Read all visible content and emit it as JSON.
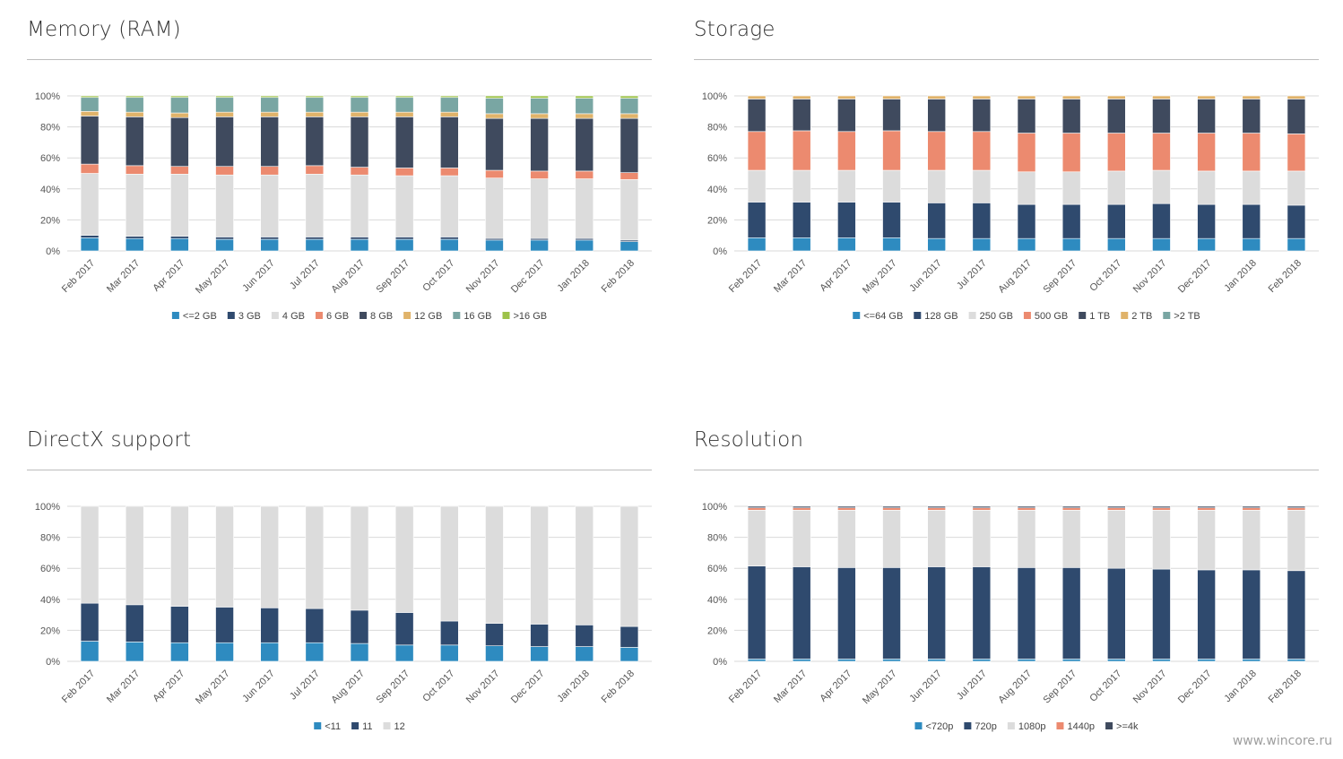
{
  "watermark": "www.wincore.ru",
  "categories": [
    "Feb 2017",
    "Mar 2017",
    "Apr 2017",
    "May 2017",
    "Jun 2017",
    "Jul 2017",
    "Aug 2017",
    "Sep 2017",
    "Oct 2017",
    "Nov 2017",
    "Dec 2017",
    "Jan 2018",
    "Feb 2018"
  ],
  "y_ticks": [
    "0%",
    "20%",
    "40%",
    "60%",
    "80%",
    "100%"
  ],
  "chart_data": [
    {
      "type": "bar",
      "stacked": true,
      "title": "Memory (RAM)",
      "ylim": [
        0,
        100
      ],
      "legend": "bottom",
      "series": [
        {
          "name": "<=2 GB",
          "color": "#2e8bc0",
          "values": [
            8.5,
            8,
            8,
            7.5,
            7.5,
            7.5,
            7.5,
            7.5,
            7.5,
            7,
            7,
            7,
            6
          ]
        },
        {
          "name": "3 GB",
          "color": "#2f4a6e",
          "values": [
            1.5,
            1.5,
            1.5,
            1.5,
            1.5,
            1.5,
            1.5,
            1.5,
            1.5,
            1,
            1,
            1,
            1
          ]
        },
        {
          "name": "4 GB",
          "color": "#dcdcdc",
          "values": [
            40,
            40,
            40,
            40,
            40,
            40.5,
            40,
            39.5,
            39.5,
            39,
            38.5,
            38.5,
            39
          ]
        },
        {
          "name": "6 GB",
          "color": "#ec8a6f",
          "values": [
            6,
            5.5,
            5,
            5.5,
            5.5,
            5.5,
            5,
            5,
            5,
            5,
            5,
            5,
            4.5
          ]
        },
        {
          "name": "8 GB",
          "color": "#3f4a5e",
          "values": [
            31,
            31.5,
            31.5,
            32,
            32,
            31.5,
            32.5,
            33,
            33,
            33.5,
            34,
            34,
            35
          ]
        },
        {
          "name": "12 GB",
          "color": "#e0b36a",
          "values": [
            3,
            3,
            3,
            3,
            3,
            3,
            3,
            3,
            3,
            3,
            3,
            3,
            3
          ]
        },
        {
          "name": "16 GB",
          "color": "#79a6a3",
          "values": [
            9,
            9.5,
            10,
            9.5,
            9.5,
            9.5,
            9.5,
            9.5,
            9.5,
            10,
            10,
            10,
            10
          ]
        },
        {
          "name": ">16 GB",
          "color": "#9dc24a",
          "values": [
            1,
            1,
            1,
            1,
            1,
            1,
            1,
            1,
            1,
            1.5,
            1.5,
            1.5,
            1.5
          ]
        }
      ]
    },
    {
      "type": "bar",
      "stacked": true,
      "title": "Storage",
      "ylim": [
        0,
        100
      ],
      "legend": "bottom",
      "series": [
        {
          "name": "<=64 GB",
          "color": "#2e8bc0",
          "values": [
            8.5,
            8.5,
            8.5,
            8.5,
            8,
            8,
            8,
            8,
            8,
            8,
            8,
            8,
            8
          ]
        },
        {
          "name": "128 GB",
          "color": "#2f4a6e",
          "values": [
            23,
            23,
            23,
            23,
            23,
            23,
            22,
            22,
            22,
            22.5,
            22,
            22,
            21.5
          ]
        },
        {
          "name": "250 GB",
          "color": "#dcdcdc",
          "values": [
            20.5,
            20.5,
            20.5,
            20.5,
            21,
            21,
            21,
            21,
            21.5,
            21.5,
            21.5,
            21.5,
            22
          ]
        },
        {
          "name": "500 GB",
          "color": "#ec8a6f",
          "values": [
            25,
            25.5,
            25,
            25.5,
            25,
            25,
            25,
            25,
            24.5,
            24,
            24.5,
            24.5,
            24
          ]
        },
        {
          "name": "1 TB",
          "color": "#3f4a5e",
          "values": [
            21,
            20.5,
            21,
            20.5,
            21,
            21,
            22,
            22,
            22,
            22,
            22,
            22,
            22.5
          ]
        },
        {
          "name": "2 TB",
          "color": "#e0b36a",
          "values": [
            2,
            2,
            2,
            2,
            2,
            2,
            2,
            2,
            2,
            2,
            2,
            2,
            2
          ]
        },
        {
          "name": ">2 TB",
          "color": "#79a6a3",
          "values": [
            0,
            0,
            0,
            0,
            0,
            0,
            0,
            0,
            0,
            0,
            0,
            0,
            0
          ]
        }
      ]
    },
    {
      "type": "bar",
      "stacked": true,
      "title": "DirectX support",
      "ylim": [
        0,
        100
      ],
      "legend": "bottom",
      "series": [
        {
          "name": "<11",
          "color": "#2e8bc0",
          "values": [
            13,
            12.5,
            12,
            12,
            12,
            12,
            11.5,
            10.5,
            10.5,
            10,
            9.5,
            9.5,
            9
          ]
        },
        {
          "name": "11",
          "color": "#2f4a6e",
          "values": [
            24.5,
            24,
            23.5,
            23,
            22.5,
            22,
            21.5,
            21,
            15.5,
            14.5,
            14.5,
            14,
            13.5
          ]
        },
        {
          "name": "12",
          "color": "#dcdcdc",
          "values": [
            62.5,
            63.5,
            64.5,
            65,
            65.5,
            66,
            67,
            68.5,
            74,
            75.5,
            76,
            76.5,
            77.5
          ]
        }
      ]
    },
    {
      "type": "bar",
      "stacked": true,
      "title": "Resolution",
      "ylim": [
        0,
        100
      ],
      "legend": "bottom",
      "series": [
        {
          "name": "<720p",
          "color": "#2e8bc0",
          "values": [
            1.5,
            1.5,
            1.5,
            1.5,
            1.5,
            1.5,
            1.5,
            1.5,
            1.5,
            1.5,
            1.5,
            1.5,
            1.5
          ]
        },
        {
          "name": "720p",
          "color": "#2f4a6e",
          "values": [
            60,
            59.5,
            59,
            59,
            59.5,
            59.5,
            59,
            59,
            58.5,
            58,
            57.5,
            57.5,
            57
          ]
        },
        {
          "name": "1080p",
          "color": "#dcdcdc",
          "values": [
            36,
            36.5,
            37,
            37,
            36.5,
            36.5,
            37,
            37,
            37.5,
            38,
            38.5,
            38.5,
            39
          ]
        },
        {
          "name": "1440p",
          "color": "#ec8a6f",
          "values": [
            1.5,
            1.5,
            1.5,
            1.5,
            1.5,
            1.5,
            1.5,
            1.5,
            1.5,
            1.5,
            1.5,
            1.5,
            1.5
          ]
        },
        {
          "name": ">=4k",
          "color": "#3f4a5e",
          "values": [
            1,
            1,
            1,
            1,
            1,
            1,
            1,
            1,
            1,
            1,
            1,
            1,
            1
          ]
        }
      ]
    }
  ]
}
